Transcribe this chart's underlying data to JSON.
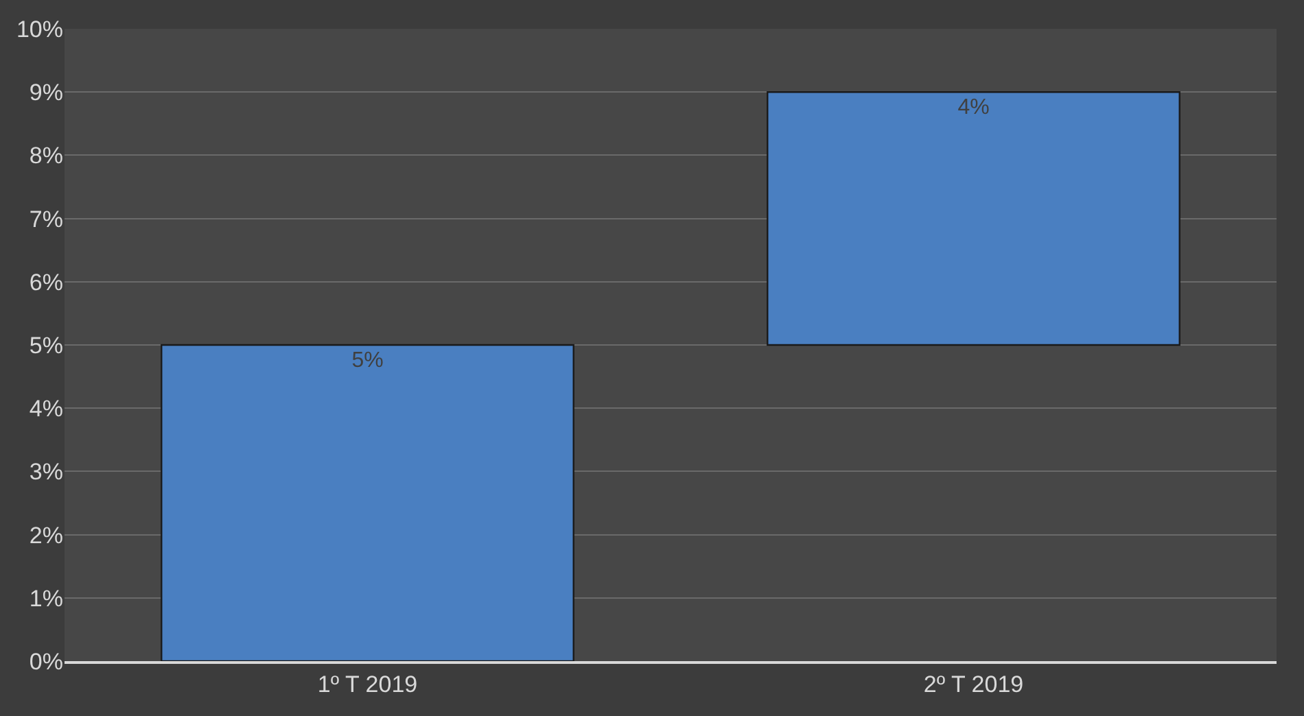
{
  "chart_data": {
    "type": "bar",
    "categories": [
      "1º T 2019",
      "2º T 2019"
    ],
    "values": [
      5,
      4
    ],
    "base": [
      0,
      5
    ],
    "color": "#4a7fc1",
    "value_labels": [
      "5%",
      "4%"
    ],
    "ylim": [
      0,
      10
    ],
    "yticks": [
      {
        "value": 0,
        "label": "0%"
      },
      {
        "value": 1,
        "label": "1%"
      },
      {
        "value": 2,
        "label": "2%"
      },
      {
        "value": 3,
        "label": "3%"
      },
      {
        "value": 4,
        "label": "4%"
      },
      {
        "value": 5,
        "label": "5%"
      },
      {
        "value": 6,
        "label": "6%"
      },
      {
        "value": 7,
        "label": "7%"
      },
      {
        "value": 8,
        "label": "8%"
      },
      {
        "value": 9,
        "label": "9%"
      },
      {
        "value": 10,
        "label": "10%"
      }
    ],
    "grid": "y",
    "legend": false
  }
}
